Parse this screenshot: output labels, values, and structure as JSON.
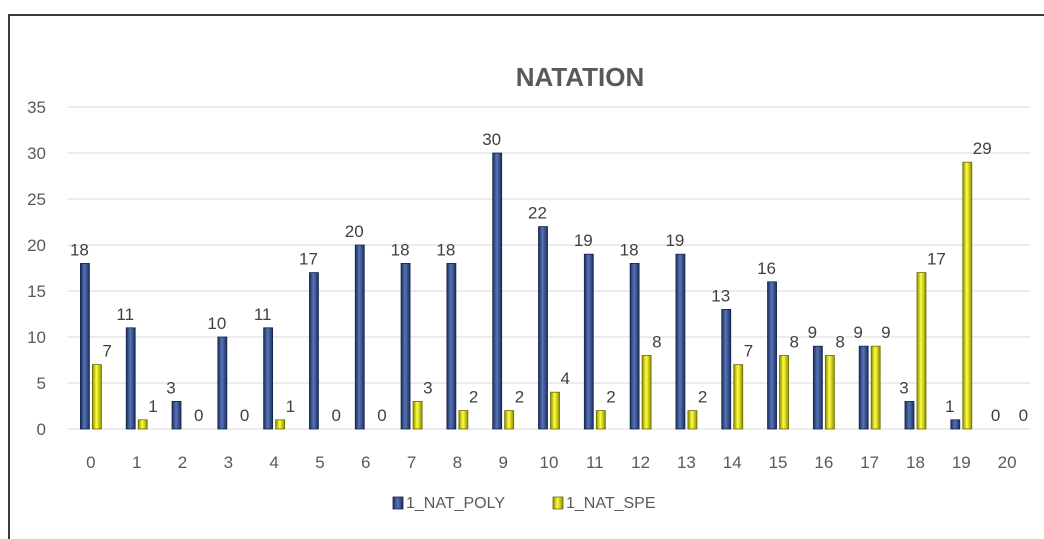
{
  "chart_data": {
    "type": "bar",
    "title": "NATATION",
    "categories": [
      "0",
      "1",
      "2",
      "3",
      "4",
      "5",
      "6",
      "7",
      "8",
      "9",
      "10",
      "11",
      "12",
      "13",
      "14",
      "15",
      "16",
      "17",
      "18",
      "19",
      "20"
    ],
    "series": [
      {
        "name": "1_NAT_POLY",
        "values": [
          18,
          11,
          3,
          10,
          11,
          17,
          20,
          18,
          18,
          30,
          22,
          19,
          18,
          19,
          13,
          16,
          9,
          9,
          3,
          1,
          0
        ]
      },
      {
        "name": "1_NAT_SPE",
        "values": [
          7,
          1,
          0,
          0,
          1,
          0,
          0,
          3,
          2,
          2,
          4,
          2,
          8,
          2,
          7,
          8,
          8,
          9,
          17,
          29,
          0
        ]
      }
    ],
    "ylim": [
      0,
      35
    ],
    "yticks": [
      0,
      5,
      10,
      15,
      20,
      25,
      30,
      35
    ],
    "grid": true,
    "legend": "bottom",
    "colors": {
      "1_NAT_POLY": "#2f4e8f",
      "1_NAT_SPE": "#e6e600"
    }
  }
}
